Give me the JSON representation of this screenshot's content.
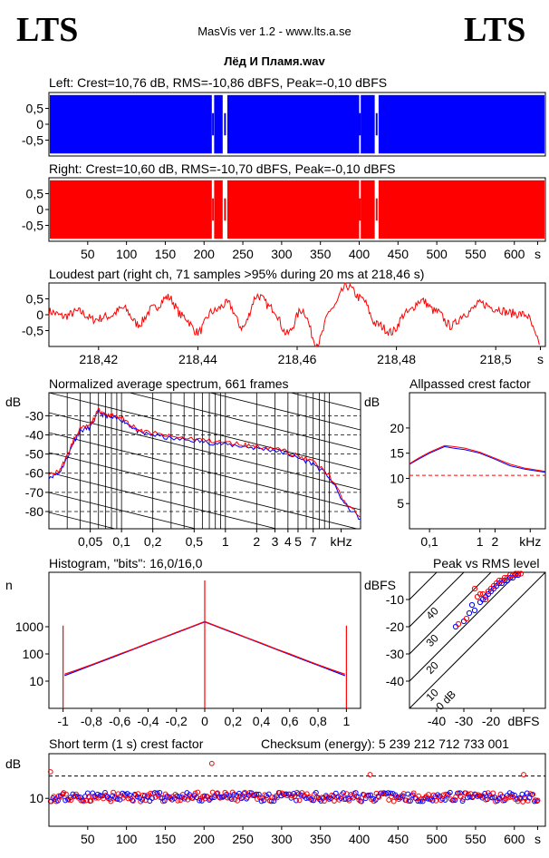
{
  "header": {
    "logo_left": "LTS",
    "logo_right": "LTS",
    "app_title": "MasVis ver 1.2 - www.lts.a.se",
    "file_name": "Лёд И Пламя.wav"
  },
  "colors": {
    "left": "#0000ff",
    "right": "#ff0000",
    "grid": "#000000"
  },
  "chart_data": [
    {
      "id": "left-waveform",
      "type": "area",
      "title": "Left: Crest=10,76 dB, RMS=-10,86 dBFS, Peak=-0,10 dBFS",
      "ytick_labels": [
        "0,5",
        "0",
        "-0,5"
      ],
      "yticks": [
        0.5,
        0,
        -0.5
      ],
      "ylim": [
        -1,
        1
      ],
      "xlim": [
        0,
        640
      ],
      "gaps": [
        [
          210,
          213
        ],
        [
          224,
          230
        ],
        [
          400,
          402
        ],
        [
          420,
          425
        ]
      ],
      "amplitude": 0.92
    },
    {
      "id": "right-waveform",
      "type": "area",
      "title": "Right: Crest=10,60 dB, RMS=-10,70 dBFS, Peak=-0,10 dBFS",
      "ytick_labels": [
        "0,5",
        "0",
        "-0,5"
      ],
      "yticks": [
        0.5,
        0,
        -0.5
      ],
      "ylim": [
        -1,
        1
      ],
      "xlim": [
        0,
        640
      ],
      "xtick_labels": [
        "50",
        "100",
        "150",
        "200",
        "250",
        "300",
        "350",
        "400",
        "450",
        "500",
        "550",
        "600",
        "s"
      ],
      "xticks": [
        50,
        100,
        150,
        200,
        250,
        300,
        350,
        400,
        450,
        500,
        550,
        600,
        630
      ],
      "gaps": [
        [
          210,
          213
        ],
        [
          224,
          230
        ],
        [
          400,
          402
        ],
        [
          420,
          425
        ]
      ],
      "amplitude": 0.92
    },
    {
      "id": "loudest-part",
      "type": "line",
      "title": "Loudest part (right ch, 71 samples >95% during 20 ms at 218,46 s)",
      "ytick_labels": [
        "0,5",
        "0",
        "-0,5"
      ],
      "yticks": [
        0.5,
        0,
        -0.5
      ],
      "ylim": [
        -1,
        1
      ],
      "xlim": [
        218.41,
        218.51
      ],
      "xtick_labels": [
        "218,42",
        "218,44",
        "218,46",
        "218,48",
        "218,5",
        "s"
      ],
      "xticks": [
        218.42,
        218.44,
        218.46,
        218.48,
        218.5,
        218.509
      ],
      "envelope": [
        [
          218.41,
          0.1
        ],
        [
          218.413,
          -0.05
        ],
        [
          218.416,
          0.1
        ],
        [
          218.419,
          -0.15
        ],
        [
          218.422,
          -0.05
        ],
        [
          218.425,
          0.2
        ],
        [
          218.428,
          -0.3
        ],
        [
          218.431,
          0.2
        ],
        [
          218.434,
          0.55
        ],
        [
          218.437,
          -0.05
        ],
        [
          218.44,
          -0.55
        ],
        [
          218.443,
          0.1
        ],
        [
          218.446,
          0.35
        ],
        [
          218.449,
          -0.4
        ],
        [
          218.452,
          0.6
        ],
        [
          218.455,
          0.2
        ],
        [
          218.458,
          -0.6
        ],
        [
          218.461,
          0.15
        ],
        [
          218.464,
          -0.9
        ],
        [
          218.467,
          0.2
        ],
        [
          218.47,
          0.9
        ],
        [
          218.473,
          0.5
        ],
        [
          218.476,
          -0.3
        ],
        [
          218.479,
          -0.55
        ],
        [
          218.482,
          0.05
        ],
        [
          218.485,
          0.45
        ],
        [
          218.488,
          0.1
        ],
        [
          218.491,
          -0.35
        ],
        [
          218.494,
          0.05
        ],
        [
          218.497,
          0.35
        ],
        [
          218.5,
          0.2
        ],
        [
          218.503,
          0.05
        ],
        [
          218.506,
          0.0
        ],
        [
          218.509,
          -0.9
        ]
      ]
    },
    {
      "id": "average-spectrum",
      "type": "line",
      "title": "Normalized average spectrum, 661 frames",
      "ylabel": "dB",
      "xlabel": "kHz",
      "ytick_labels": [
        "-30",
        "-40",
        "-50",
        "-60",
        "-70",
        "-80"
      ],
      "yticks": [
        -30,
        -40,
        -50,
        -60,
        -70,
        -80
      ],
      "ylim": [
        -89,
        -18
      ],
      "xscale": "log",
      "xlim": [
        0.02,
        20
      ],
      "xtick_labels": [
        "0,05",
        "0,1",
        "0,2",
        "0,5",
        "1",
        "2",
        "3",
        "4",
        "5",
        "7",
        "kHz"
      ],
      "xticks": [
        0.05,
        0.1,
        0.2,
        0.5,
        1,
        2,
        3,
        4,
        5,
        7,
        13
      ],
      "series": [
        {
          "color": "#0000ff",
          "points": [
            [
              0.02,
              -62
            ],
            [
              0.025,
              -60
            ],
            [
              0.03,
              -52
            ],
            [
              0.035,
              -43
            ],
            [
              0.04,
              -38
            ],
            [
              0.05,
              -36
            ],
            [
              0.06,
              -28
            ],
            [
              0.07,
              -30
            ],
            [
              0.08,
              -31
            ],
            [
              0.1,
              -32
            ],
            [
              0.12,
              -35
            ],
            [
              0.15,
              -39
            ],
            [
              0.2,
              -40
            ],
            [
              0.3,
              -42
            ],
            [
              0.5,
              -43
            ],
            [
              0.7,
              -44
            ],
            [
              1,
              -45
            ],
            [
              1.5,
              -46
            ],
            [
              2,
              -47
            ],
            [
              3,
              -48
            ],
            [
              4,
              -50
            ],
            [
              5,
              -52
            ],
            [
              7,
              -55
            ],
            [
              10,
              -62
            ],
            [
              14,
              -76
            ],
            [
              20,
              -84
            ]
          ]
        },
        {
          "color": "#ff0000",
          "points": [
            [
              0.02,
              -61
            ],
            [
              0.025,
              -59
            ],
            [
              0.03,
              -51
            ],
            [
              0.035,
              -42
            ],
            [
              0.04,
              -37
            ],
            [
              0.05,
              -35
            ],
            [
              0.06,
              -27
            ],
            [
              0.07,
              -29
            ],
            [
              0.08,
              -30
            ],
            [
              0.1,
              -31
            ],
            [
              0.12,
              -34
            ],
            [
              0.15,
              -38
            ],
            [
              0.2,
              -39
            ],
            [
              0.3,
              -41
            ],
            [
              0.5,
              -42
            ],
            [
              0.7,
              -43
            ],
            [
              1,
              -44
            ],
            [
              1.5,
              -45
            ],
            [
              2,
              -46
            ],
            [
              3,
              -47
            ],
            [
              4,
              -49
            ],
            [
              5,
              -51
            ],
            [
              7,
              -54
            ],
            [
              10,
              -61
            ],
            [
              14,
              -75
            ],
            [
              20,
              -83
            ]
          ]
        }
      ]
    },
    {
      "id": "allpassed-crest",
      "type": "line",
      "title": "Allpassed crest factor",
      "ylabel": "dB",
      "xlabel": "kHz",
      "ytick_labels": [
        "20",
        "15",
        "10",
        "5"
      ],
      "yticks": [
        20,
        15,
        10,
        5
      ],
      "ylim": [
        0,
        27
      ],
      "xscale": "log",
      "xlim": [
        0.04,
        20
      ],
      "xtick_labels": [
        "0,1",
        "1",
        "2",
        "kHz"
      ],
      "xticks": [
        0.1,
        1,
        2,
        10
      ],
      "reference": 10.6,
      "series": [
        {
          "color": "#0000ff",
          "points": [
            [
              0.04,
              12.8
            ],
            [
              0.06,
              13.8
            ],
            [
              0.1,
              15.0
            ],
            [
              0.2,
              16.3
            ],
            [
              0.3,
              16.0
            ],
            [
              0.5,
              15.7
            ],
            [
              1,
              15.0
            ],
            [
              2,
              13.8
            ],
            [
              4,
              12.5
            ],
            [
              8,
              11.8
            ],
            [
              20,
              11.2
            ]
          ]
        },
        {
          "color": "#ff0000",
          "points": [
            [
              0.04,
              12.9
            ],
            [
              0.06,
              14.0
            ],
            [
              0.1,
              15.2
            ],
            [
              0.2,
              16.5
            ],
            [
              0.3,
              16.3
            ],
            [
              0.5,
              16.0
            ],
            [
              1,
              15.2
            ],
            [
              2,
              14.0
            ],
            [
              4,
              12.8
            ],
            [
              8,
              12.0
            ],
            [
              20,
              11.4
            ]
          ]
        }
      ]
    },
    {
      "id": "histogram",
      "type": "line",
      "title": "Histogram, \"bits\": 16,0/16,0",
      "ylabel": "n",
      "yscale": "log",
      "ytick_labels": [
        "1000",
        "100",
        "10"
      ],
      "yticks": [
        1000,
        100,
        10
      ],
      "ylim": [
        1,
        100000
      ],
      "xlim": [
        -1.1,
        1.1
      ],
      "xtick_labels": [
        "-1",
        "-0,8",
        "-0,6",
        "-0,4",
        "-0,2",
        "0",
        "0,2",
        "0,4",
        "0,6",
        "0,8",
        "1"
      ],
      "xticks": [
        -1,
        -0.8,
        -0.6,
        -0.4,
        -0.2,
        0,
        0.2,
        0.4,
        0.6,
        0.8,
        1
      ],
      "spikes": [
        [
          -1,
          1100
        ],
        [
          0,
          50000
        ],
        [
          1,
          1100
        ]
      ],
      "series": [
        {
          "color": "#0000ff",
          "points": [
            [
              -0.99,
              16
            ],
            [
              -0.9,
              24
            ],
            [
              -0.8,
              38
            ],
            [
              -0.7,
              60
            ],
            [
              -0.6,
              95
            ],
            [
              -0.5,
              150
            ],
            [
              -0.4,
              240
            ],
            [
              -0.3,
              380
            ],
            [
              -0.2,
              600
            ],
            [
              -0.1,
              950
            ],
            [
              0,
              1500
            ],
            [
              0.1,
              950
            ],
            [
              0.2,
              600
            ],
            [
              0.3,
              380
            ],
            [
              0.4,
              240
            ],
            [
              0.5,
              150
            ],
            [
              0.6,
              95
            ],
            [
              0.7,
              60
            ],
            [
              0.8,
              38
            ],
            [
              0.9,
              24
            ],
            [
              0.99,
              16
            ]
          ]
        },
        {
          "color": "#ff0000",
          "points": [
            [
              -0.99,
              18
            ],
            [
              -0.9,
              26
            ],
            [
              -0.8,
              40
            ],
            [
              -0.7,
              63
            ],
            [
              -0.6,
              100
            ],
            [
              -0.5,
              155
            ],
            [
              -0.4,
              250
            ],
            [
              -0.3,
              390
            ],
            [
              -0.2,
              620
            ],
            [
              -0.1,
              980
            ],
            [
              0,
              1550
            ],
            [
              0.1,
              980
            ],
            [
              0.2,
              620
            ],
            [
              0.3,
              390
            ],
            [
              0.4,
              250
            ],
            [
              0.5,
              155
            ],
            [
              0.6,
              100
            ],
            [
              0.7,
              63
            ],
            [
              0.8,
              40
            ],
            [
              0.9,
              26
            ],
            [
              0.99,
              18
            ]
          ]
        }
      ]
    },
    {
      "id": "peak-vs-rms",
      "type": "scatter",
      "title": "Peak vs RMS level",
      "ylabel": "dBFS",
      "xlabel": "dBFS",
      "ytick_labels": [
        "-10",
        "-20",
        "-30",
        "-40"
      ],
      "yticks": [
        -10,
        -20,
        -30,
        -40
      ],
      "ylim": [
        -50,
        0
      ],
      "xlim": [
        -50,
        0
      ],
      "xtick_labels": [
        "-40",
        "-30",
        "-20",
        "dBFS"
      ],
      "xticks": [
        -40,
        -30,
        -20,
        -8
      ],
      "diagonal_labels": [
        "40",
        "30",
        "20",
        "10",
        "0 dB"
      ],
      "series": [
        {
          "color": "#0000ff",
          "points": [
            [
              -33,
              -20
            ],
            [
              -30,
              -18
            ],
            [
              -28,
              -15
            ],
            [
              -27,
              -12
            ],
            [
              -24,
              -11
            ],
            [
              -22,
              -9
            ],
            [
              -21,
              -8
            ],
            [
              -20,
              -7
            ],
            [
              -19,
              -6
            ],
            [
              -18,
              -5
            ],
            [
              -17,
              -4
            ],
            [
              -16,
              -4
            ],
            [
              -15,
              -3
            ],
            [
              -14,
              -3
            ],
            [
              -13,
              -2
            ],
            [
              -12,
              -2
            ],
            [
              -11,
              -1
            ],
            [
              -10,
              -1
            ],
            [
              -26,
              -14
            ],
            [
              -23,
              -10
            ]
          ]
        },
        {
          "color": "#ff0000",
          "points": [
            [
              -32,
              -19
            ],
            [
              -29,
              -17
            ],
            [
              -25,
              -9
            ],
            [
              -23,
              -8
            ],
            [
              -21,
              -7
            ],
            [
              -19,
              -5
            ],
            [
              -18,
              -4
            ],
            [
              -17,
              -3
            ],
            [
              -16,
              -3
            ],
            [
              -15,
              -2
            ],
            [
              -14,
              -2
            ],
            [
              -13,
              -1
            ],
            [
              -12,
              -1
            ],
            [
              -11,
              -0.5
            ],
            [
              -10,
              -0.5
            ],
            [
              -9,
              -0.5
            ],
            [
              -20,
              -6
            ],
            [
              -22,
              -10
            ],
            [
              -24,
              -8
            ],
            [
              -26,
              -6
            ]
          ]
        }
      ]
    },
    {
      "id": "short-term-crest",
      "type": "scatter",
      "title": "Short term (1 s) crest factor",
      "checksum": "Checksum (energy):  5 239 212 712 733 001",
      "ylabel": "dB",
      "ytick_labels": [
        "10"
      ],
      "yticks": [
        10
      ],
      "ylim": [
        0,
        26
      ],
      "xlim": [
        0,
        640
      ],
      "reference": 18,
      "xtick_labels": [
        "50",
        "100",
        "150",
        "200",
        "250",
        "300",
        "350",
        "400",
        "450",
        "500",
        "550",
        "600",
        "s"
      ],
      "xticks": [
        50,
        100,
        150,
        200,
        250,
        300,
        350,
        400,
        450,
        500,
        550,
        600,
        630
      ],
      "outliers": [
        [
          2,
          19.5
        ],
        [
          210,
          22.5
        ],
        [
          414,
          18.5
        ],
        [
          612,
          18.5
        ]
      ],
      "base": 10.5
    }
  ]
}
